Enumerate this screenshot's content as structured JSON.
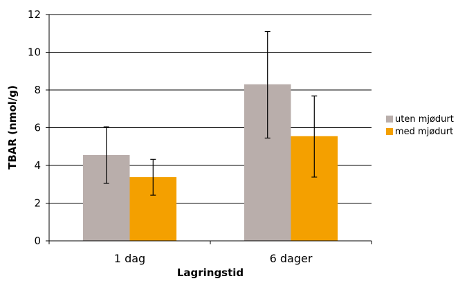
{
  "chart_data": {
    "type": "bar",
    "categories": [
      "1 dag",
      "6 dager"
    ],
    "series": [
      {
        "name": "uten mjødurt",
        "color": "#b9aeab",
        "values": [
          4.55,
          8.3
        ],
        "error_low": [
          3.05,
          5.45
        ],
        "error_high": [
          6.05,
          11.1
        ]
      },
      {
        "name": "med mjødurt",
        "color": "#f4a000",
        "values": [
          3.38,
          5.55
        ],
        "error_low": [
          2.42,
          3.38
        ],
        "error_high": [
          4.32,
          7.68
        ]
      }
    ],
    "xlabel": "Lagringstid",
    "ylabel": "TBAR (nmol/g)",
    "ylim": [
      0,
      12
    ],
    "yticks": [
      "0",
      "2",
      "4",
      "6",
      "8",
      "10",
      "12"
    ],
    "grid": true,
    "legend_position": "right"
  }
}
